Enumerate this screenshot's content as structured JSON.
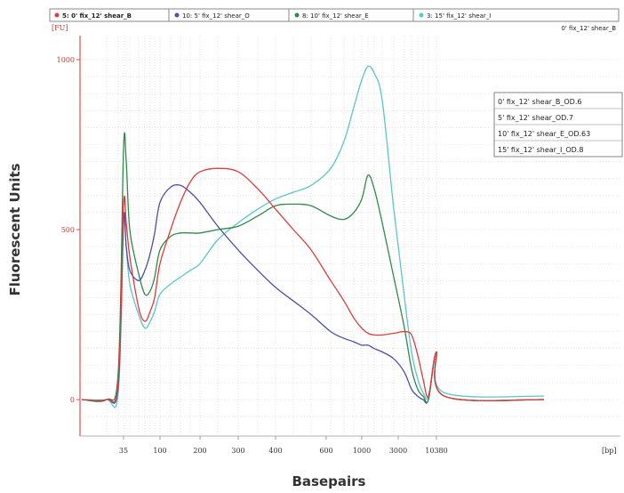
{
  "chart_data": {
    "type": "line",
    "title": "",
    "xlabel": "Basepairs",
    "ylabel": "Fluorescent Units",
    "y_unit_label": "[FU]",
    "x_unit_label": "[bp]",
    "top_right_label": "0' fix_12' shear_B",
    "xticks": [
      "35",
      "100",
      "200",
      "300",
      "400",
      "600",
      "1000",
      "3000",
      "10380"
    ],
    "yticks": [
      0,
      500,
      1000
    ],
    "ylim": [
      -100,
      1050
    ],
    "legend_top": [
      {
        "label": "5: 0' fix_12' shear_B",
        "color": "#e03b3b"
      },
      {
        "label": "10: 5' fix_12' shear_O",
        "color": "#4b4fa8"
      },
      {
        "label": "8: 10' fix_12' shear_E",
        "color": "#2e8b4a"
      },
      {
        "label": "3: 15' fix_12' shear_I",
        "color": "#5bc6c8"
      }
    ],
    "legend_box": [
      "0' fix_12' shear_B_OD.6",
      "5' fix_12' shear_OD.7",
      "10' fix_12' shear_E_OD.63",
      "15' fix_12' shear_I_OD.8"
    ],
    "x_positions": [
      "<20",
      "25",
      "30",
      "35",
      "37",
      "40",
      "50",
      "60",
      "70",
      "80",
      "100",
      "125",
      "150",
      "175",
      "200",
      "250",
      "300",
      "350",
      "400",
      "450",
      "500",
      "600",
      "700",
      "800",
      "900",
      "1000",
      "1100",
      "1200",
      "1500",
      "2000",
      "3000",
      "3500",
      "5000",
      "8000",
      "10380",
      "11000",
      ">12000"
    ],
    "series": [
      {
        "color": "#e03b3b",
        "values": [
          0,
          0,
          50,
          570,
          520,
          420,
          270,
          230,
          260,
          300,
          400,
          500,
          580,
          640,
          670,
          680,
          670,
          620,
          560,
          500,
          440,
          350,
          290,
          240,
          210,
          195,
          190,
          190,
          195,
          200,
          190,
          130,
          60,
          10,
          140,
          10,
          0
        ]
      },
      {
        "color": "#4b4fa8",
        "values": [
          0,
          0,
          40,
          530,
          450,
          380,
          350,
          380,
          430,
          490,
          580,
          625,
          630,
          610,
          580,
          510,
          440,
          380,
          330,
          290,
          250,
          200,
          180,
          170,
          160,
          160,
          150,
          140,
          120,
          80,
          30,
          10,
          0,
          0,
          140,
          10,
          0
        ]
      },
      {
        "color": "#2e8b4a",
        "values": [
          0,
          0,
          80,
          740,
          700,
          500,
          370,
          310,
          320,
          360,
          440,
          480,
          490,
          490,
          490,
          500,
          510,
          540,
          570,
          575,
          570,
          540,
          530,
          550,
          590,
          660,
          620,
          520,
          360,
          210,
          90,
          30,
          10,
          0,
          140,
          10,
          0
        ]
      },
      {
        "color": "#5bc6c8",
        "values": [
          0,
          0,
          20,
          510,
          450,
          340,
          250,
          210,
          230,
          260,
          310,
          340,
          360,
          380,
          400,
          470,
          520,
          560,
          590,
          610,
          630,
          680,
          760,
          860,
          940,
          980,
          960,
          880,
          560,
          300,
          140,
          60,
          20,
          10,
          140,
          20,
          10
        ]
      }
    ]
  }
}
